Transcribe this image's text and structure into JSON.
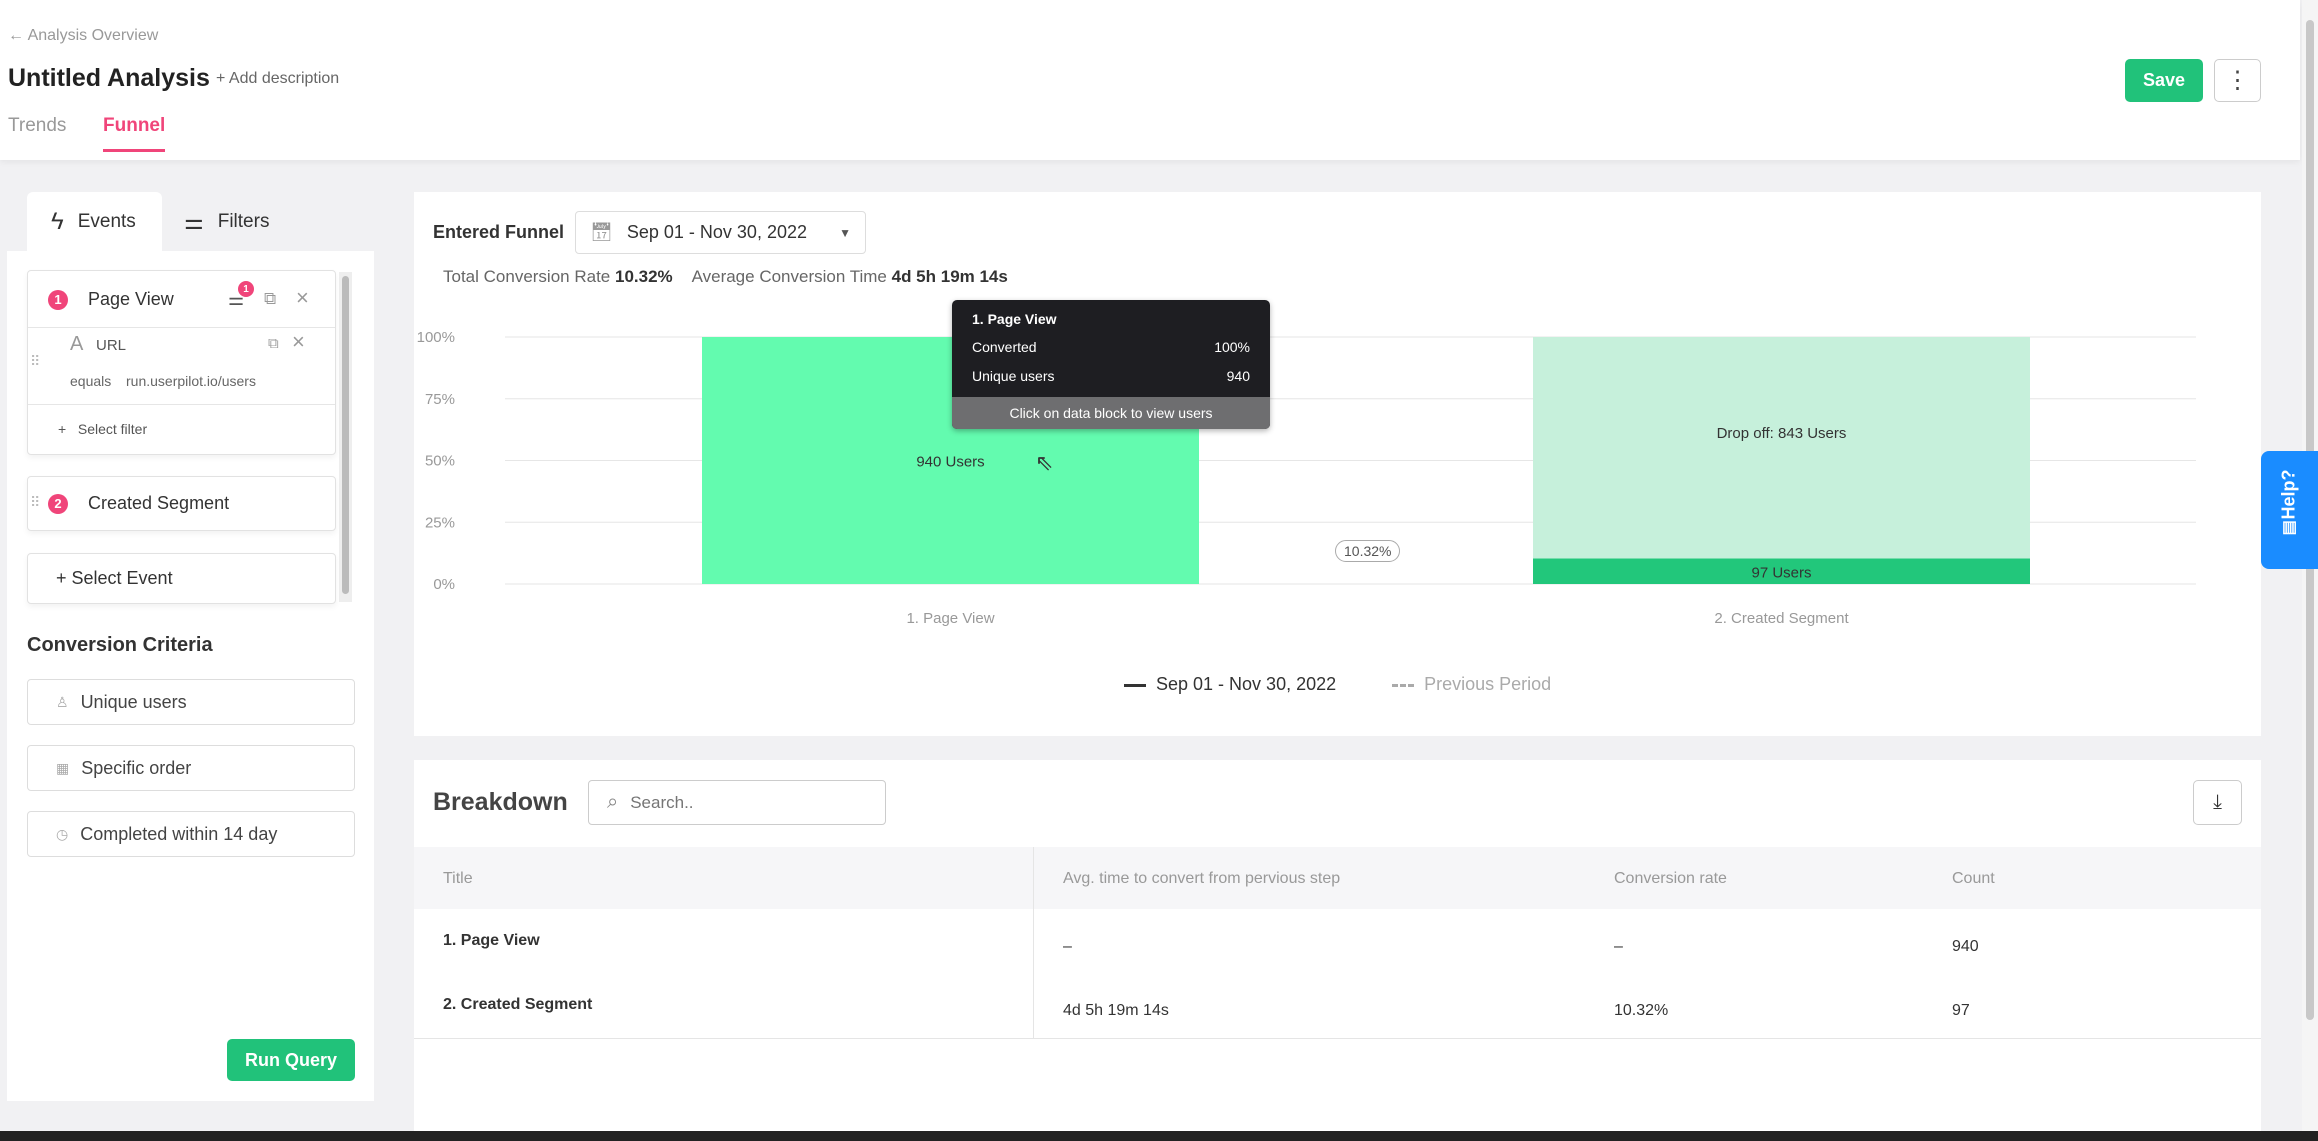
{
  "header": {
    "breadcrumb": "Analysis Overview",
    "title": "Untitled Analysis",
    "add_description": "+ Add description",
    "tabs": [
      "Trends",
      "Funnel"
    ],
    "active_tab": "Funnel",
    "save": "Save"
  },
  "left": {
    "tabs": [
      "Events",
      "Filters"
    ],
    "events": [
      {
        "num": "1",
        "name": "Page View",
        "filter_count": "1",
        "filter": {
          "property": "URL",
          "operator": "equals",
          "value": "run.userpilot.io/users"
        },
        "select_filter": "Select filter"
      },
      {
        "num": "2",
        "name": "Created Segment"
      }
    ],
    "select_event": "+ Select Event",
    "criteria_title": "Conversion Criteria",
    "criteria": [
      "Unique users",
      "Specific order",
      "Completed within 14 day"
    ],
    "run": "Run Query"
  },
  "chart": {
    "entered": "Entered Funnel",
    "date_range": "Sep 01 - Nov 30, 2022",
    "total_label": "Total Conversion Rate",
    "total_value": "10.32%",
    "avg_label": "Average Conversion Time",
    "avg_value": "4d 5h 19m 14s",
    "legend": [
      "Sep 01 - Nov 30, 2022",
      "Previous Period"
    ],
    "tooltip": {
      "title": "1. Page View",
      "rows": [
        [
          "Converted",
          "100%"
        ],
        [
          "Unique users",
          "940"
        ]
      ],
      "footer": "Click on data block to view users"
    },
    "conversion_badge": "10.32%"
  },
  "chart_data": {
    "type": "bar",
    "categories": [
      "1. Page View",
      "2. Created Segment"
    ],
    "values": [
      100,
      10.32
    ],
    "users": [
      940,
      97
    ],
    "drop_off": [
      0,
      843
    ],
    "bar_labels": [
      "940 Users",
      "97 Users"
    ],
    "drop_label": "Drop off: 843 Users",
    "yticks": [
      "0%",
      "25%",
      "50%",
      "75%",
      "100%"
    ],
    "ylim": [
      0,
      100
    ],
    "grid": true,
    "legend_position": "bottom",
    "colors": {
      "converted_first": "#63fbaf",
      "converted": "#22c77b",
      "drop_off": "#c6f0db"
    }
  },
  "breakdown": {
    "title": "Breakdown",
    "search_placeholder": "Search..",
    "columns": [
      "Title",
      "Avg. time to convert from pervious step",
      "Conversion rate",
      "Count"
    ],
    "rows": [
      [
        "1. Page View",
        "–",
        "–",
        "940"
      ],
      [
        "2. Created Segment",
        "4d 5h 19m 14s",
        "10.32%",
        "97"
      ]
    ]
  },
  "help": "Help?"
}
